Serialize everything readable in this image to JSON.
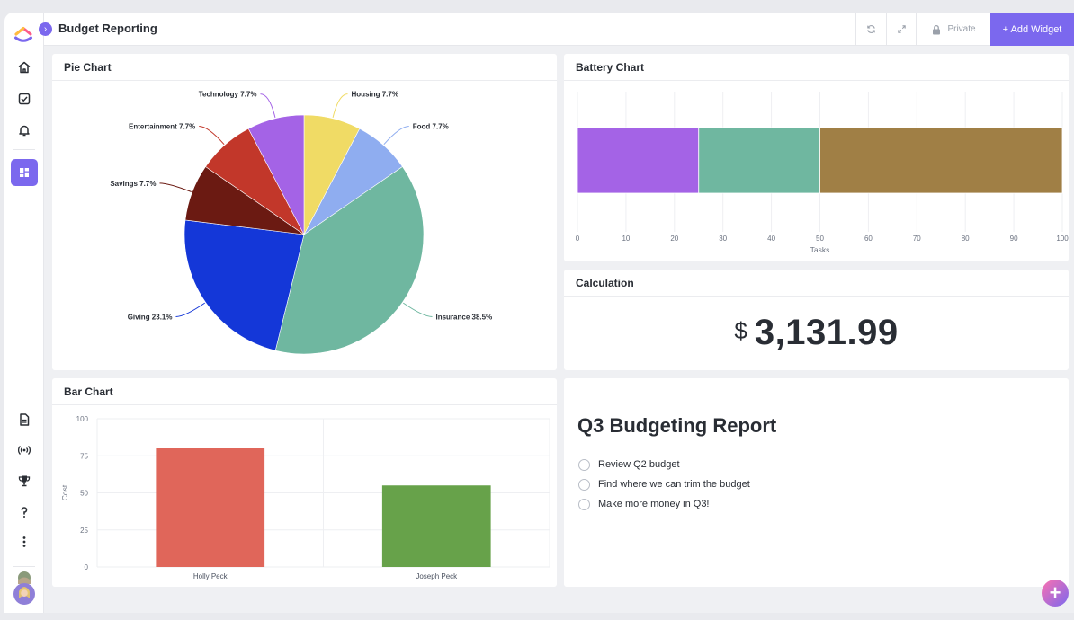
{
  "header": {
    "title": "Budget Reporting",
    "private_label": "Private",
    "add_widget_label": "+ Add Widget"
  },
  "sidebar": {
    "items": [
      {
        "name": "home-icon"
      },
      {
        "name": "checkbox-icon"
      },
      {
        "name": "bell-icon"
      },
      {
        "name": "dashboard-icon"
      },
      {
        "name": "document-icon"
      },
      {
        "name": "broadcast-icon"
      },
      {
        "name": "trophy-icon"
      },
      {
        "name": "help-icon"
      },
      {
        "name": "more-icon"
      }
    ]
  },
  "widgets": {
    "pie": {
      "title": "Pie Chart",
      "chart_data": {
        "type": "pie",
        "slices": [
          {
            "label": "Housing",
            "pct_label": "7.7%",
            "value": 7.7,
            "color": "#f0db65"
          },
          {
            "label": "Food",
            "pct_label": "7.7%",
            "value": 7.7,
            "color": "#8fadf0"
          },
          {
            "label": "Insurance",
            "pct_label": "38.5%",
            "value": 38.5,
            "color": "#6fb7a0"
          },
          {
            "label": "Giving",
            "pct_label": "23.1%",
            "value": 23.1,
            "color": "#1437d8"
          },
          {
            "label": "Savings",
            "pct_label": "7.7%",
            "value": 7.7,
            "color": "#6b1a12"
          },
          {
            "label": "Entertainment",
            "pct_label": "7.7%",
            "value": 7.7,
            "color": "#c2372a"
          },
          {
            "label": "Technology",
            "pct_label": "7.7%",
            "value": 7.7,
            "color": "#a463e6"
          }
        ]
      }
    },
    "battery": {
      "title": "Battery Chart",
      "chart_data": {
        "type": "bar",
        "orientation": "horizontal-stacked",
        "segments": [
          {
            "value": 25,
            "color": "#a463e6"
          },
          {
            "value": 25,
            "color": "#6fb7a0"
          },
          {
            "value": 50,
            "color": "#a07f45"
          }
        ],
        "xlim": [
          0,
          100
        ],
        "xticks": [
          "0",
          "10",
          "20",
          "30",
          "40",
          "50",
          "60",
          "70",
          "80",
          "90",
          "100"
        ],
        "xlabel": "Tasks",
        "grid": true
      }
    },
    "calculation": {
      "title": "Calculation",
      "currency": "$",
      "value": "3,131.99"
    },
    "bar": {
      "title": "Bar Chart",
      "chart_data": {
        "type": "bar",
        "categories": [
          "Holly Peck",
          "Joseph Peck"
        ],
        "values": [
          80,
          55
        ],
        "colors": [
          "#e0665a",
          "#67a24a"
        ],
        "ylabel": "Cost",
        "ylim": [
          0,
          100
        ],
        "yticks": [
          "0",
          "25",
          "50",
          "75",
          "100"
        ],
        "grid": true
      }
    },
    "report": {
      "title": "Q3 Budgeting Report",
      "items": [
        "Review Q2 budget",
        "Find where we can trim the budget",
        "Make more money in Q3!"
      ]
    }
  }
}
